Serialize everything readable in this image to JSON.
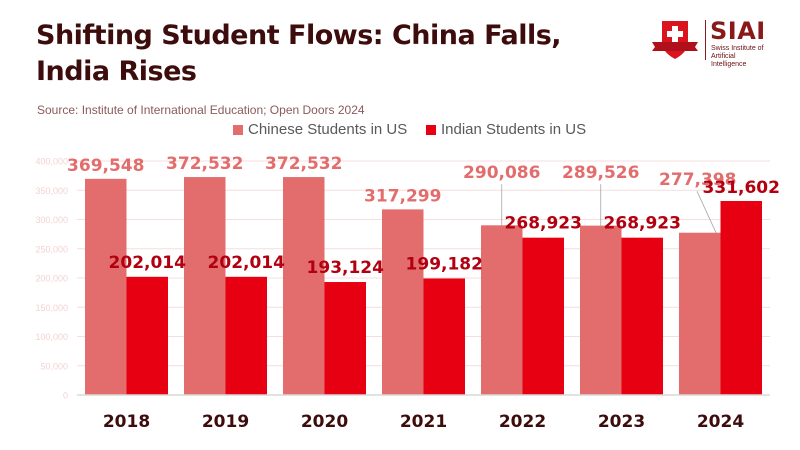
{
  "title": "Shifting Student Flows: China Falls, India Rises",
  "source": "Source: Institute of International Education; Open Doors 2024",
  "logo": {
    "name": "SIAI",
    "tagline_line1": "Swiss Institute of",
    "tagline_line2": "Artificial Intelligence"
  },
  "colors": {
    "chinese": "#e36c6c",
    "indian": "#e60012",
    "title": "#3d0c0c",
    "chinese_label": "#e36c6c",
    "indian_label": "#b30010",
    "grid": "#f6dede",
    "tick": "#f3d2d2"
  },
  "chart_data": {
    "type": "bar",
    "title": "Shifting Student Flows: China Falls, India Rises",
    "xlabel": "",
    "ylabel": "",
    "categories": [
      "2018",
      "2019",
      "2020",
      "2021",
      "2022",
      "2023",
      "2024"
    ],
    "series": [
      {
        "name": "Chinese Students in US",
        "values": [
          369548,
          372532,
          372532,
          317299,
          290086,
          289526,
          277398
        ],
        "labels": [
          "369,548",
          "372,532",
          "372,532",
          "317,299",
          "290,086",
          "289,526",
          "277,398"
        ]
      },
      {
        "name": "Indian Students in US",
        "values": [
          202014,
          202014,
          193124,
          199182,
          268923,
          268923,
          331602
        ],
        "labels": [
          "202,014",
          "202,014",
          "193,124",
          "199,182",
          "268,923",
          "268,923",
          "331,602"
        ]
      }
    ],
    "ylim": [
      0,
      400000
    ],
    "yticks": [
      0,
      50000,
      100000,
      150000,
      200000,
      250000,
      300000,
      350000,
      400000
    ],
    "ytick_labels": [
      "0",
      "50,000",
      "100,000",
      "150,000",
      "200,000",
      "250,000",
      "300,000",
      "350,000",
      "400,000"
    ],
    "grid": true,
    "legend": "top-center"
  }
}
